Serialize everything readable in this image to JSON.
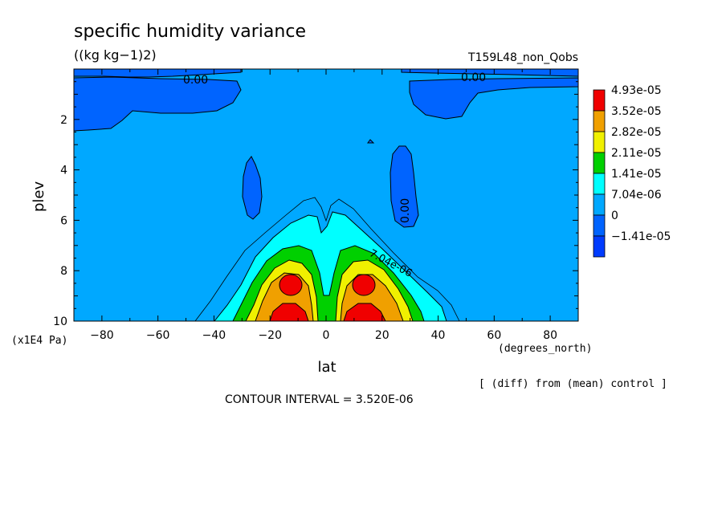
{
  "header": {
    "title": "specific humidity variance",
    "units": "((kg kg−1)2)",
    "run": "T159L48_non_Qobs"
  },
  "footer": {
    "note": "[ (diff) from (mean) control ]",
    "contour_interval": "CONTOUR INTERVAL = 3.520E-06"
  },
  "chart_data": {
    "type": "heatmap",
    "title": "specific humidity variance",
    "xlabel": "lat",
    "x_units": "(degrees_north)",
    "ylabel": "plev",
    "y_units": "(x1E4 Pa)",
    "xlim": [
      -90,
      90
    ],
    "ylim": [
      10,
      0
    ],
    "x_ticks": [
      -80,
      -60,
      -40,
      -20,
      0,
      20,
      40,
      60,
      80
    ],
    "y_ticks": [
      2,
      4,
      6,
      8,
      10
    ],
    "contour_labels": [
      {
        "text": "0.00",
        "lat": -47,
        "plev": 0.4
      },
      {
        "text": "0.00",
        "lat": 52,
        "plev": 0.3
      },
      {
        "text": "0.00",
        "lat": 31,
        "plev": 5.5
      },
      {
        "text": "7.04e-06",
        "lat": 20,
        "plev": 7.8
      }
    ],
    "legend": {
      "placement": "right",
      "colors": [
        "#f00000",
        "#f0a000",
        "#f0f000",
        "#00d000",
        "#00ffff",
        "#00a8ff",
        "#0064ff",
        "#003cff"
      ],
      "labels": [
        "4.93e-05",
        "3.52e-05",
        "2.82e-05",
        "2.11e-05",
        "1.41e-05",
        "7.04e-06",
        "0",
        "-1.41e-05"
      ]
    },
    "regions": [
      {
        "level": "-1.41e-05",
        "description": "negative variance near top (plev < 2.5) at high latitudes and isolated columns near ±25–30 lat, plev 3.5–6"
      },
      {
        "level": "4.93e-05",
        "description": "maxima centered near lat ±15, plev 8.5 and plev 9.7"
      }
    ]
  }
}
